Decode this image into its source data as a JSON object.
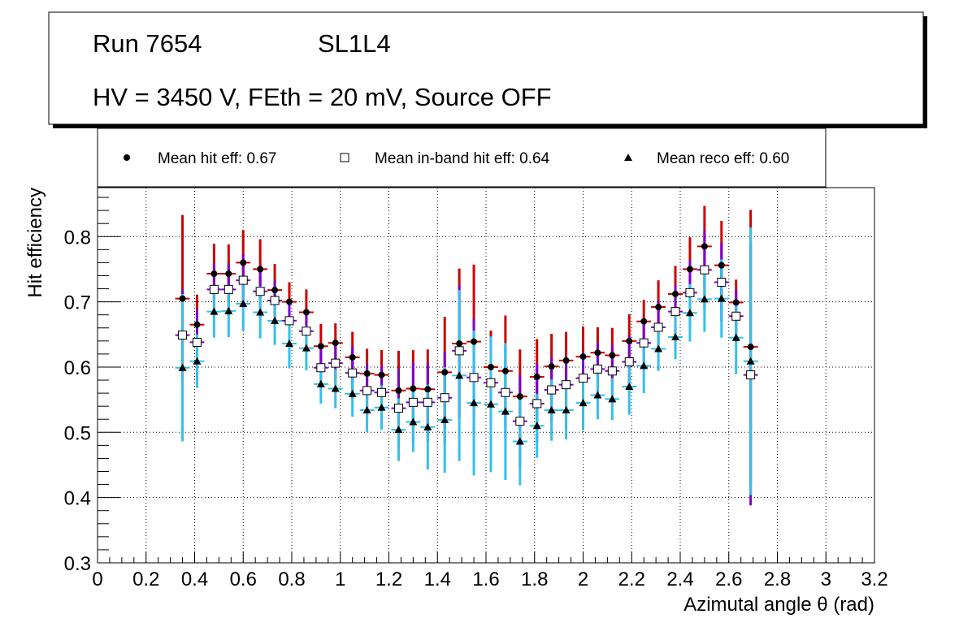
{
  "header": {
    "run": "Run 7654",
    "layer": "SL1L4",
    "conditions": "HV = 3450 V, FEth = 20 mV, Source OFF"
  },
  "legend": {
    "hit": "Mean hit  eff: 0.67",
    "inband": "Mean in-band hit eff: 0.64",
    "reco": "Mean reco eff: 0.60"
  },
  "colors": {
    "hit_error": "#cc0000",
    "inband_error": "#7a00cc",
    "reco_error": "#33c0e8",
    "marker": "#000000"
  },
  "chart_data": {
    "type": "scatter",
    "title": "",
    "xlabel": "Azimutal angle θ (rad)",
    "ylabel": "Hit efficiency",
    "xlim": [
      0,
      3.2
    ],
    "ylim": [
      0.3,
      0.875
    ],
    "grid": true,
    "x_ticks": [
      "0",
      "0.2",
      "0.4",
      "0.6",
      "0.8",
      "1",
      "1.2",
      "1.4",
      "1.6",
      "1.8",
      "2",
      "2.2",
      "2.4",
      "2.6",
      "2.8",
      "3",
      "3.2"
    ],
    "y_ticks": [
      "0.3",
      "0.4",
      "0.5",
      "0.6",
      "0.7",
      "0.8"
    ],
    "x": [
      0.35,
      0.41,
      0.48,
      0.54,
      0.6,
      0.67,
      0.73,
      0.79,
      0.86,
      0.92,
      0.98,
      1.05,
      1.11,
      1.17,
      1.24,
      1.3,
      1.36,
      1.43,
      1.49,
      1.55,
      1.62,
      1.68,
      1.74,
      1.81,
      1.87,
      1.93,
      2.0,
      2.06,
      2.12,
      2.19,
      2.25,
      2.31,
      2.38,
      2.44,
      2.5,
      2.57,
      2.63,
      2.69
    ],
    "x_half_width": 0.03,
    "series": [
      {
        "name": "Mean hit  eff: 0.67",
        "marker": "filled-circle",
        "values": [
          0.705,
          0.665,
          0.743,
          0.743,
          0.76,
          0.75,
          0.718,
          0.7,
          0.684,
          0.632,
          0.637,
          0.615,
          0.59,
          0.588,
          0.564,
          0.567,
          0.566,
          0.592,
          0.636,
          0.639,
          0.6,
          0.594,
          0.555,
          0.585,
          0.601,
          0.61,
          0.616,
          0.622,
          0.618,
          0.64,
          0.67,
          0.692,
          0.712,
          0.75,
          0.785,
          0.756,
          0.699,
          0.631
        ],
        "errors": [
          0.128,
          0.046,
          0.046,
          0.045,
          0.05,
          0.046,
          0.04,
          0.03,
          0.035,
          0.034,
          0.03,
          0.039,
          0.038,
          0.038,
          0.061,
          0.059,
          0.061,
          0.085,
          0.115,
          0.118,
          0.056,
          0.085,
          0.072,
          0.058,
          0.05,
          0.044,
          0.046,
          0.039,
          0.042,
          0.041,
          0.033,
          0.041,
          0.043,
          0.049,
          0.062,
          0.068,
          0.035,
          0.21
        ]
      },
      {
        "name": "Mean in-band hit eff: 0.64",
        "marker": "open-square",
        "values": [
          0.649,
          0.638,
          0.719,
          0.719,
          0.733,
          0.716,
          0.702,
          0.671,
          0.655,
          0.599,
          0.606,
          0.591,
          0.564,
          0.561,
          0.537,
          0.546,
          0.546,
          0.553,
          0.625,
          0.584,
          0.576,
          0.561,
          0.517,
          0.544,
          0.565,
          0.573,
          0.583,
          0.597,
          0.594,
          0.608,
          0.637,
          0.661,
          0.685,
          0.714,
          0.749,
          0.73,
          0.678,
          0.588
        ],
        "errors": [
          0.07,
          0.05,
          0.04,
          0.04,
          0.04,
          0.04,
          0.03,
          0.03,
          0.03,
          0.03,
          0.03,
          0.04,
          0.04,
          0.04,
          0.06,
          0.06,
          0.06,
          0.07,
          0.1,
          0.09,
          0.06,
          0.07,
          0.07,
          0.06,
          0.05,
          0.04,
          0.04,
          0.04,
          0.04,
          0.04,
          0.03,
          0.04,
          0.04,
          0.05,
          0.06,
          0.06,
          0.04,
          0.2
        ]
      },
      {
        "name": "Mean reco eff: 0.60",
        "marker": "filled-triangle",
        "values": [
          0.599,
          0.609,
          0.685,
          0.686,
          0.697,
          0.684,
          0.671,
          0.636,
          0.629,
          0.574,
          0.567,
          0.559,
          0.534,
          0.538,
          0.504,
          0.516,
          0.508,
          0.519,
          0.587,
          0.545,
          0.543,
          0.532,
          0.486,
          0.51,
          0.534,
          0.534,
          0.545,
          0.557,
          0.551,
          0.57,
          0.602,
          0.628,
          0.646,
          0.683,
          0.704,
          0.705,
          0.645,
          0.609
        ],
        "errors": [
          0.113,
          0.041,
          0.04,
          0.04,
          0.041,
          0.04,
          0.037,
          0.038,
          0.034,
          0.03,
          0.03,
          0.035,
          0.034,
          0.034,
          0.048,
          0.046,
          0.065,
          0.081,
          0.131,
          0.111,
          0.104,
          0.105,
          0.067,
          0.049,
          0.047,
          0.045,
          0.042,
          0.037,
          0.032,
          0.043,
          0.042,
          0.034,
          0.034,
          0.044,
          0.05,
          0.06,
          0.056,
          0.205
        ]
      }
    ]
  }
}
